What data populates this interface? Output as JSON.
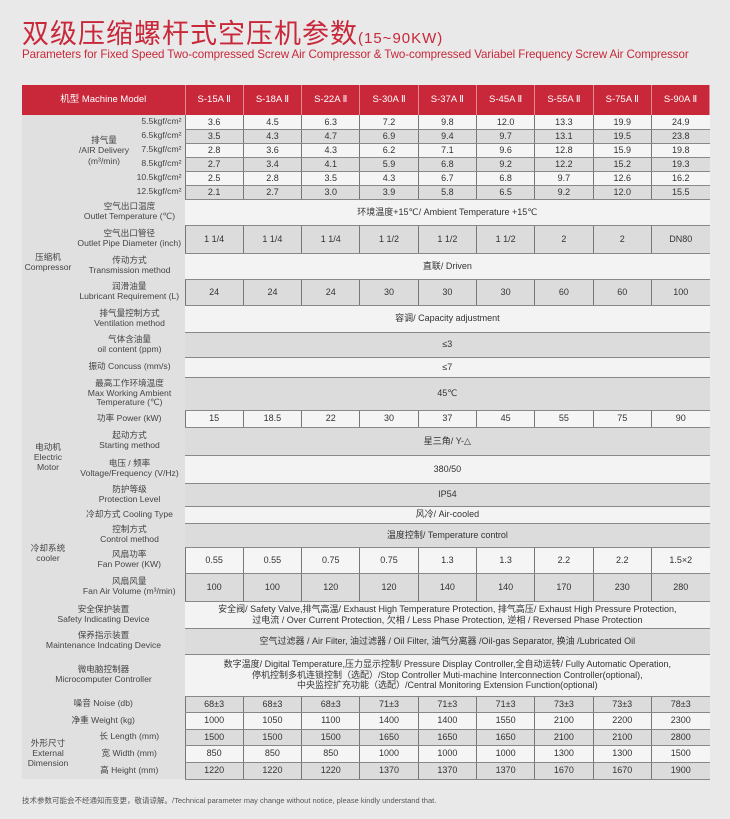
{
  "header": {
    "title": "双级压缩螺杆式空压机参数",
    "range": "(15~90KW)",
    "subtitle": "Parameters for Fixed Speed Two-compressed Screw Air Compressor & Two-compressed Variabel Frequency Screw Air Compressor"
  },
  "colors": {
    "accent": "#c8283a"
  },
  "table": {
    "model_header": "机型 Machine Model",
    "models": [
      "S-15A Ⅱ",
      "S-18A Ⅱ",
      "S-22A Ⅱ",
      "S-30A Ⅱ",
      "S-37A Ⅱ",
      "S-45A Ⅱ",
      "S-55A Ⅱ",
      "S-75A Ⅱ",
      "S-90A Ⅱ"
    ],
    "groups": {
      "compressor": "压缩机\nCompressor",
      "motor": "电动机\nElectric\nMotor",
      "cooler": "冷却系统\ncooler",
      "dimension": "外形尺寸\nExternal\nDimension"
    },
    "air_delivery": {
      "label": "排气量\n/AIR Delivery\n(m³/min)",
      "rows": [
        {
          "pressure": "5.5kgf/cm²",
          "values": [
            "3.6",
            "4.5",
            "6.3",
            "7.2",
            "9.8",
            "12.0",
            "13.3",
            "19.9",
            "24.9"
          ]
        },
        {
          "pressure": "6.5kgf/cm²",
          "values": [
            "3.5",
            "4.3",
            "4.7",
            "6.9",
            "9.4",
            "9.7",
            "13.1",
            "19.5",
            "23.8"
          ]
        },
        {
          "pressure": "7.5kgf/cm²",
          "values": [
            "2.8",
            "3.6",
            "4.3",
            "6.2",
            "7.1",
            "9.6",
            "12.8",
            "15.9",
            "19.8"
          ]
        },
        {
          "pressure": "8.5kgf/cm²",
          "values": [
            "2.7",
            "3.4",
            "4.1",
            "5.9",
            "6.8",
            "9.2",
            "12.2",
            "15.2",
            "19.3"
          ]
        },
        {
          "pressure": "10.5kgf/cm²",
          "values": [
            "2.5",
            "2.8",
            "3.5",
            "4.3",
            "6.7",
            "6.8",
            "9.7",
            "12.6",
            "16.2"
          ]
        },
        {
          "pressure": "12.5kgf/cm²",
          "values": [
            "2.1",
            "2.7",
            "3.0",
            "3.9",
            "5.8",
            "6.5",
            "9.2",
            "12.0",
            "15.5"
          ]
        }
      ]
    },
    "rows": [
      {
        "label": "空气出口温度\nOutlet Temperature (℃)",
        "span": "环境温度+15℃/ Ambient Temperature +15℃",
        "group": "compressor"
      },
      {
        "label": "空气出口管径\nOutlet Pipe Diameter (inch)",
        "values": [
          "1 1/4",
          "1 1/4",
          "1 1/4",
          "1 1/2",
          "1 1/2",
          "1 1/2",
          "2",
          "2",
          "DN80"
        ],
        "group": "compressor"
      },
      {
        "label": "传动方式\nTransmission method",
        "span": "直联/ Driven",
        "group": "compressor"
      },
      {
        "label": "润滑油量\nLubricant Requirement (L)",
        "values": [
          "24",
          "24",
          "24",
          "30",
          "30",
          "30",
          "60",
          "60",
          "100"
        ],
        "group": "compressor"
      },
      {
        "label": "排气量控制方式\nVentilation method",
        "span": "容调/ Capacity adjustment",
        "group": "compressor"
      },
      {
        "label": "气体含油量\noil content (ppm)",
        "span": "≤3",
        "group": "compressor"
      },
      {
        "label": "振动 Concuss (mm/s)",
        "span": "≤7",
        "group": "compressor"
      },
      {
        "label": "最高工作环境温度\nMax Working Ambient\nTemperature (℃)",
        "span": "45℃",
        "group": "compressor"
      },
      {
        "label": "功率 Power (kW)",
        "values": [
          "15",
          "18.5",
          "22",
          "30",
          "37",
          "45",
          "55",
          "75",
          "90"
        ],
        "group": "motor"
      },
      {
        "label": "起动方式\nStarting method",
        "span": "星三角/ Y-△",
        "group": "motor"
      },
      {
        "label": "电压 / 频率\nVoltage/Frequency (V/Hz)",
        "span": "380/50",
        "group": "motor"
      },
      {
        "label": "防护等级\nProtection Level",
        "span": "IP54",
        "group": "motor"
      },
      {
        "label": "冷却方式 Cooling Type",
        "span": "风冷/ Air-cooled",
        "group": "cooler"
      },
      {
        "label": "控制方式\nControl method",
        "span": "温度控制/ Temperature control",
        "group": "cooler"
      },
      {
        "label": "风扇功率\nFan Power (KW)",
        "values": [
          "0.55",
          "0.55",
          "0.75",
          "0.75",
          "1.3",
          "1.3",
          "2.2",
          "2.2",
          "1.5×2"
        ],
        "group": "cooler"
      },
      {
        "label": "风扇风量\nFan Air Volume (m³/min)",
        "values": [
          "100",
          "100",
          "120",
          "120",
          "140",
          "140",
          "170",
          "230",
          "280"
        ],
        "group": "cooler"
      },
      {
        "label": "安全保护装置\nSafety Indicating Device",
        "span": "安全阀/ Safety Valve,排气高温/ Exhaust High Temperature Protection, 排气高压/ Exhaust High Pressure Protection,\n过电流 / Over Current Protection, 欠相 / Less Phase Protection, 逆相 / Reversed Phase Protection"
      },
      {
        "label": "保养指示装置\nMaintenance Indcating Device",
        "span": "空气过滤器 / Air Filter, 油过滤器 / Oil Filter, 油气分离器 /Oil-gas Separator, 换油 /Lubricated Oil"
      },
      {
        "label": "微电脑控制器\nMicrocomputer Controller",
        "span": "数字温度/ Digital Temperature,压力显示控制/ Pressure Display Controller,全自动运转/ Fully Automatic Operation,\n停机控制多机连锁控制（选配）/Stop Controller Muti-machine Interconnection Controller(optional),\n中央监控扩充功能（选配）/Central Monitoring Extension Function(optional)"
      },
      {
        "label": "噪音 Noise (db)",
        "values": [
          "68±3",
          "68±3",
          "68±3",
          "71±3",
          "71±3",
          "71±3",
          "73±3",
          "73±3",
          "78±3"
        ]
      },
      {
        "label": "净重 Weight (kg)",
        "values": [
          "1000",
          "1050",
          "1100",
          "1400",
          "1400",
          "1550",
          "2100",
          "2200",
          "2300"
        ]
      },
      {
        "label": "长 Length (mm)",
        "values": [
          "1500",
          "1500",
          "1500",
          "1650",
          "1650",
          "1650",
          "2100",
          "2100",
          "2800"
        ],
        "group": "dimension"
      },
      {
        "label": "宽 Width (mm)",
        "values": [
          "850",
          "850",
          "850",
          "1000",
          "1000",
          "1000",
          "1300",
          "1300",
          "1500"
        ],
        "group": "dimension"
      },
      {
        "label": "高 Height (mm)",
        "values": [
          "1220",
          "1220",
          "1220",
          "1370",
          "1370",
          "1370",
          "1670",
          "1670",
          "1900"
        ],
        "group": "dimension"
      }
    ]
  },
  "footnote": "技术参数可能会不经通知而变更，敬请谅解。/Technical parameter may change without notice, please kindly understand that."
}
